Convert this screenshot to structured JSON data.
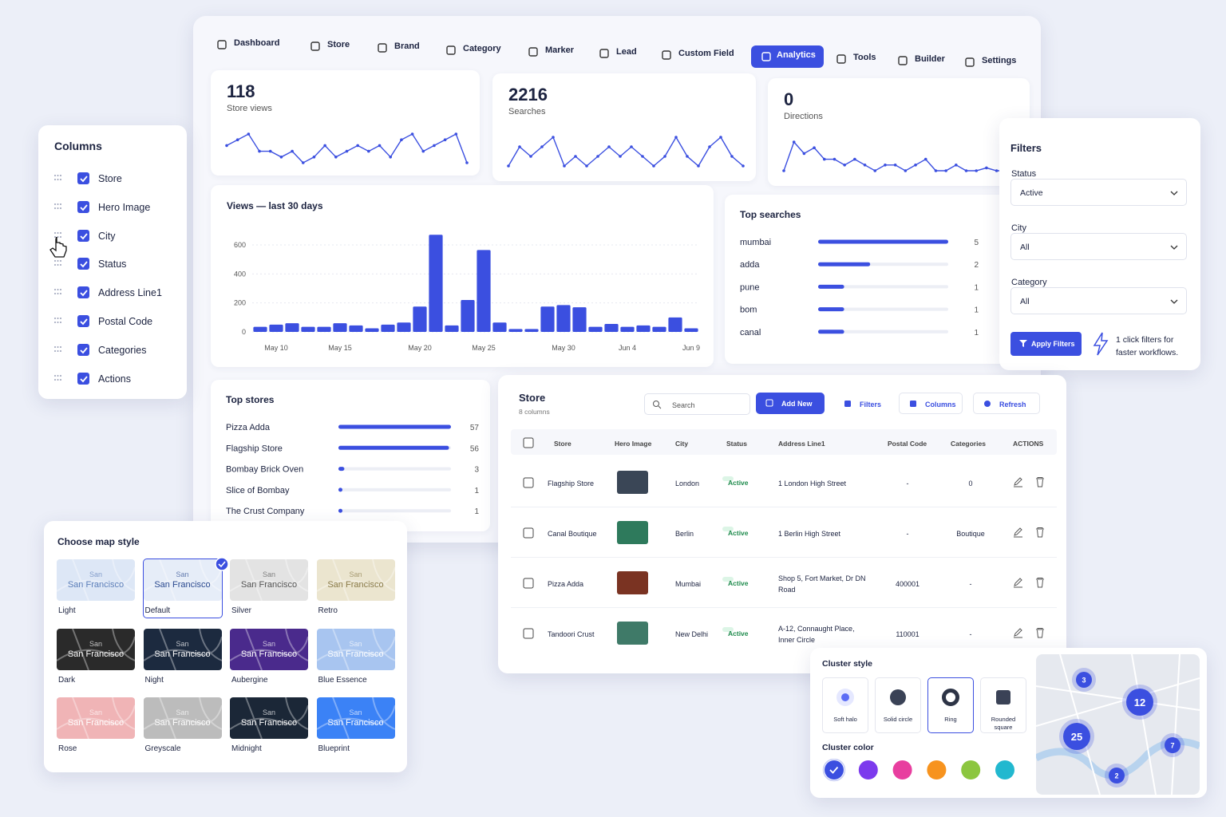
{
  "nav": {
    "items": [
      "Dashboard",
      "Store",
      "Brand",
      "Category",
      "Marker",
      "Lead",
      "Custom Field",
      "Analytics",
      "Tools",
      "Builder",
      "Settings"
    ],
    "active": "Analytics"
  },
  "stats": [
    {
      "value": "118",
      "label": "Store views",
      "trend": [
        4,
        5,
        6,
        3,
        3,
        2,
        3,
        1,
        2,
        4,
        2,
        3,
        4,
        3,
        4,
        2,
        5,
        6,
        3,
        4,
        5,
        6,
        1
      ]
    },
    {
      "value": "2216",
      "label": "Searches",
      "trend": [
        1,
        3,
        2,
        3,
        4,
        1,
        2,
        1,
        2,
        3,
        2,
        3,
        2,
        1,
        2,
        4,
        2,
        1,
        3,
        4,
        2,
        1
      ]
    },
    {
      "value": "0",
      "label": "Directions",
      "trend": [
        1,
        6,
        4,
        5,
        3,
        3,
        2,
        3,
        2,
        1,
        2,
        2,
        1,
        2,
        3,
        1,
        1,
        2,
        1,
        1,
        1.5,
        1,
        1,
        1.5
      ]
    }
  ],
  "views": {
    "type": "bar",
    "title": "Views — last 30 days",
    "color": "#3b4fe0",
    "ylim": [
      0,
      700
    ],
    "yticks": [
      0,
      200,
      400,
      600
    ],
    "grid": true,
    "categories": [
      null,
      "May 10",
      null,
      null,
      null,
      "May 15",
      null,
      null,
      null,
      null,
      "May 20",
      null,
      null,
      null,
      "May 25",
      null,
      null,
      null,
      null,
      "May 30",
      null,
      null,
      null,
      "Jun 4",
      null,
      null,
      null,
      "Jun 9"
    ],
    "values": [
      35,
      50,
      60,
      35,
      35,
      60,
      45,
      25,
      50,
      65,
      175,
      670,
      45,
      220,
      565,
      65,
      20,
      20,
      175,
      185,
      170,
      35,
      55,
      35,
      45,
      35,
      100,
      25
    ]
  },
  "top_searches": {
    "title": "Top searches",
    "rows": [
      {
        "name": "mumbai",
        "value": 5
      },
      {
        "name": "adda",
        "value": 2
      },
      {
        "name": "pune",
        "value": 1
      },
      {
        "name": "bom",
        "value": 1
      },
      {
        "name": "canal",
        "value": 1
      }
    ]
  },
  "top_stores": {
    "title": "Top stores",
    "rows": [
      {
        "name": "Pizza Adda",
        "value": 57
      },
      {
        "name": "Flagship Store",
        "value": 56
      },
      {
        "name": "Bombay Brick Oven",
        "value": 3
      },
      {
        "name": "Slice of Bombay",
        "value": 1
      },
      {
        "name": "The Crust Company",
        "value": 1
      }
    ]
  },
  "columns": {
    "title": "Columns",
    "items": [
      "Store",
      "Hero Image",
      "City",
      "Status",
      "Address Line1",
      "Postal Code",
      "Categories",
      "Actions"
    ]
  },
  "filters": {
    "title": "Filters",
    "fields": [
      {
        "label": "Status",
        "value": "Active"
      },
      {
        "label": "City",
        "value": "All"
      },
      {
        "label": "Category",
        "value": "All"
      }
    ],
    "button": "Apply Filters",
    "note": "1 click filters for faster workflows."
  },
  "table": {
    "title": "Store",
    "subtitle": "8 columns",
    "search": "Search",
    "buttons": [
      "Add New",
      "Filters",
      "Columns",
      "Refresh"
    ],
    "headers": [
      "Store",
      "Hero Image",
      "City",
      "Status",
      "Address Line1",
      "Postal Code",
      "Categories",
      "ACTIONS"
    ],
    "rows": [
      {
        "store": "Flagship Store",
        "city": "London",
        "status": "Active",
        "address": "1 London High Street",
        "postal": "-",
        "categories": "0"
      },
      {
        "store": "Canal Boutique",
        "city": "Berlin",
        "status": "Active",
        "address": "1 Berlin High Street",
        "postal": "-",
        "categories": "Boutique"
      },
      {
        "store": "Pizza Adda",
        "city": "Mumbai",
        "status": "Active",
        "address": "Shop 5, Fort Market, Dr DN Road",
        "postal": "400001",
        "categories": "-"
      },
      {
        "store": "Tandoori Crust",
        "city": "New Delhi",
        "status": "Active",
        "address": "A-12, Connaught Place, Inner Circle",
        "postal": "110001",
        "categories": "-"
      }
    ]
  },
  "map_style": {
    "title": "Choose map style",
    "tile_text": [
      "San",
      "San Francisco"
    ],
    "selected": "Default",
    "styles": [
      {
        "name": "Light",
        "color": "#dde7f6",
        "ink": "#5d7fb9"
      },
      {
        "name": "Default",
        "color": "#e6edf8",
        "ink": "#2b4a8f"
      },
      {
        "name": "Silver",
        "color": "#e3e3e3",
        "ink": "#555555"
      },
      {
        "name": "Retro",
        "color": "#ebe5cf",
        "ink": "#8a7b4a"
      },
      {
        "name": "Dark",
        "color": "#2a2a2a",
        "ink": "#ffffff"
      },
      {
        "name": "Night",
        "color": "#1c2a3f",
        "ink": "#ffffff"
      },
      {
        "name": "Aubergine",
        "color": "#4a2a8c",
        "ink": "#ffffff"
      },
      {
        "name": "Blue Essence",
        "color": "#a8c5f0",
        "ink": "#ffffff"
      },
      {
        "name": "Rose",
        "color": "#f0b4b6",
        "ink": "#ffffff"
      },
      {
        "name": "Greyscale",
        "color": "#bcbcbc",
        "ink": "#ffffff"
      },
      {
        "name": "Midnight",
        "color": "#1b2737",
        "ink": "#ffffff"
      },
      {
        "name": "Blueprint",
        "color": "#3b82f6",
        "ink": "#ffffff"
      }
    ]
  },
  "cluster": {
    "title": "Cluster style",
    "styles": [
      "Soft halo",
      "Solid circle",
      "Ring",
      "Rounded square"
    ],
    "selected": "Ring",
    "color_title": "Cluster color",
    "colors": [
      "#3b4fe0",
      "#7c3aed",
      "#e83e9f",
      "#f7931e",
      "#8cc63f",
      "#22b8cf"
    ],
    "map_counts": [
      "3",
      "12",
      "25",
      "7",
      "2"
    ]
  }
}
